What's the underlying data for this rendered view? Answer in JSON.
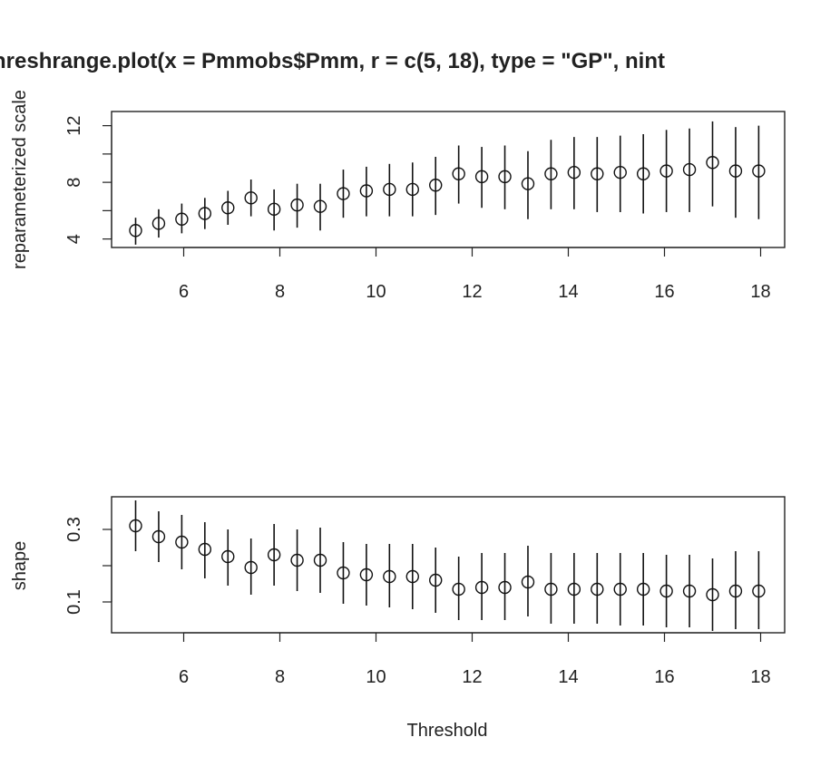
{
  "chart_data": {
    "type": "scatter",
    "title": "hreshrange.plot(x = Pmmobs$Pmm, r = c(5, 18), type = \"GP\", nint",
    "xlabel": "Threshold",
    "grid": false,
    "x": [
      5.0,
      5.48,
      5.96,
      6.44,
      6.92,
      7.4,
      7.88,
      8.36,
      8.84,
      9.32,
      9.8,
      10.28,
      10.76,
      11.24,
      11.72,
      12.2,
      12.68,
      13.16,
      13.64,
      14.12,
      14.6,
      15.08,
      15.56,
      16.04,
      16.52,
      17.0,
      17.48,
      17.96
    ],
    "panels": [
      {
        "ylabel": "reparameterized scale",
        "xlim": [
          4.5,
          18.5
        ],
        "ylim": [
          3.4,
          13.0
        ],
        "xticks": [
          "6",
          "8",
          "10",
          "12",
          "14",
          "16",
          "18"
        ],
        "yticks": [
          "4",
          "8",
          "12"
        ],
        "series": [
          {
            "values": [
              4.6,
              5.1,
              5.4,
              5.8,
              6.2,
              6.9,
              6.1,
              6.4,
              6.3,
              7.2,
              7.4,
              7.5,
              7.5,
              7.8,
              8.6,
              8.4,
              8.4,
              7.9,
              8.6,
              8.7,
              8.6,
              8.7,
              8.6,
              8.8,
              8.9,
              9.4,
              8.8,
              8.8
            ],
            "lower": [
              3.6,
              4.1,
              4.4,
              4.7,
              5.0,
              5.6,
              4.6,
              4.8,
              4.6,
              5.5,
              5.6,
              5.6,
              5.6,
              5.7,
              6.5,
              6.2,
              6.1,
              5.4,
              6.1,
              6.1,
              5.9,
              5.9,
              5.8,
              5.9,
              5.9,
              6.3,
              5.5,
              5.4
            ],
            "upper": [
              5.5,
              6.1,
              6.5,
              6.9,
              7.4,
              8.2,
              7.5,
              7.9,
              7.9,
              8.9,
              9.1,
              9.3,
              9.4,
              9.8,
              10.6,
              10.5,
              10.6,
              10.2,
              11.0,
              11.2,
              11.2,
              11.3,
              11.4,
              11.7,
              11.8,
              12.3,
              11.9,
              12.0
            ]
          }
        ]
      },
      {
        "ylabel": "shape",
        "xlim": [
          4.5,
          18.5
        ],
        "ylim": [
          0.015,
          0.39
        ],
        "xticks": [
          "6",
          "8",
          "10",
          "12",
          "14",
          "16",
          "18"
        ],
        "yticks": [
          "0.1",
          "0.3"
        ],
        "series": [
          {
            "values": [
              0.31,
              0.28,
              0.265,
              0.245,
              0.225,
              0.195,
              0.23,
              0.215,
              0.215,
              0.18,
              0.175,
              0.17,
              0.17,
              0.16,
              0.135,
              0.14,
              0.14,
              0.155,
              0.135,
              0.135,
              0.135,
              0.135,
              0.135,
              0.13,
              0.13,
              0.12,
              0.13,
              0.13
            ],
            "lower": [
              0.24,
              0.21,
              0.19,
              0.165,
              0.145,
              0.12,
              0.145,
              0.13,
              0.125,
              0.095,
              0.09,
              0.085,
              0.08,
              0.07,
              0.05,
              0.05,
              0.05,
              0.06,
              0.04,
              0.04,
              0.04,
              0.035,
              0.035,
              0.03,
              0.03,
              0.02,
              0.025,
              0.025
            ],
            "upper": [
              0.38,
              0.35,
              0.34,
              0.32,
              0.3,
              0.275,
              0.315,
              0.3,
              0.305,
              0.265,
              0.26,
              0.26,
              0.26,
              0.25,
              0.225,
              0.235,
              0.235,
              0.255,
              0.235,
              0.235,
              0.235,
              0.235,
              0.235,
              0.23,
              0.23,
              0.22,
              0.24,
              0.24
            ]
          }
        ]
      }
    ]
  }
}
